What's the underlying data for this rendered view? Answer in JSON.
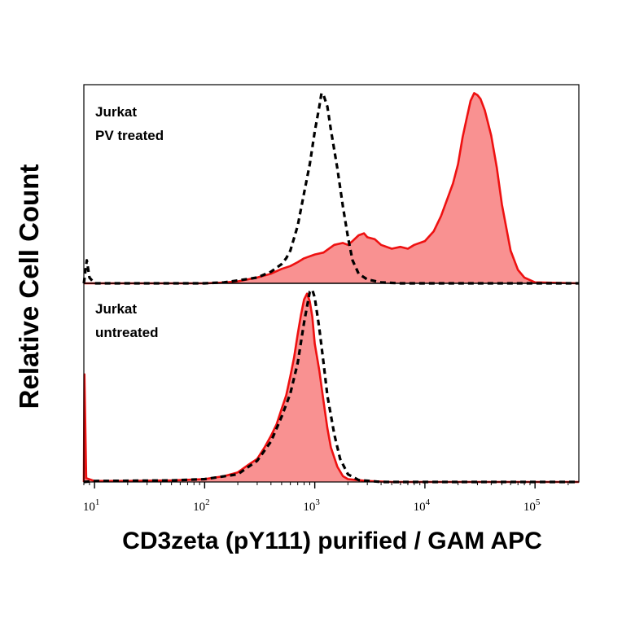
{
  "chart_data": {
    "type": "area",
    "title": "",
    "xlabel": "CD3zeta (pY111) purified / GAM APC",
    "ylabel": "Relative Cell Count",
    "x_scale": "log",
    "xlim": [
      8,
      250000
    ],
    "ylim": [
      0,
      100
    ],
    "x_ticks": [
      {
        "value": 10,
        "base": "10",
        "exp": "1"
      },
      {
        "value": 100,
        "base": "10",
        "exp": "2"
      },
      {
        "value": 1000,
        "base": "10",
        "exp": "3"
      },
      {
        "value": 10000,
        "base": "10",
        "exp": "4"
      },
      {
        "value": 100000,
        "base": "10",
        "exp": "5"
      }
    ],
    "grid": false,
    "legend": "none",
    "colors": {
      "stained": "#ee1111",
      "stained_fill": "#f99191",
      "control": "#000000"
    },
    "panels": [
      {
        "label_line1": "Jurkat",
        "label_line2": "PV treated",
        "series": [
          {
            "style": "filled-red",
            "points": [
              [
                8,
                0
              ],
              [
                100,
                0
              ],
              [
                150,
                0.4
              ],
              [
                200,
                1
              ],
              [
                300,
                3
              ],
              [
                400,
                5
              ],
              [
                500,
                7.5
              ],
              [
                600,
                9
              ],
              [
                700,
                11
              ],
              [
                800,
                13
              ],
              [
                1000,
                15
              ],
              [
                1200,
                16
              ],
              [
                1500,
                20
              ],
              [
                1800,
                21
              ],
              [
                2000,
                20
              ],
              [
                2200,
                22
              ],
              [
                2500,
                25
              ],
              [
                2800,
                26
              ],
              [
                3000,
                24
              ],
              [
                3500,
                23
              ],
              [
                4000,
                20
              ],
              [
                5000,
                18
              ],
              [
                6000,
                19
              ],
              [
                7000,
                18
              ],
              [
                8000,
                20
              ],
              [
                10000,
                22
              ],
              [
                12000,
                27
              ],
              [
                14000,
                35
              ],
              [
                16000,
                44
              ],
              [
                18000,
                52
              ],
              [
                20000,
                62
              ],
              [
                22000,
                76
              ],
              [
                24000,
                86
              ],
              [
                26000,
                95
              ],
              [
                28000,
                99
              ],
              [
                30000,
                98
              ],
              [
                32000,
                96
              ],
              [
                35000,
                90
              ],
              [
                40000,
                77
              ],
              [
                45000,
                60
              ],
              [
                50000,
                41
              ],
              [
                60000,
                17
              ],
              [
                70000,
                7
              ],
              [
                80000,
                3
              ],
              [
                100000,
                0.5
              ],
              [
                250000,
                0
              ]
            ]
          },
          {
            "style": "dashed-black",
            "points": [
              [
                8,
                0
              ],
              [
                8.5,
                12
              ],
              [
                9,
                3
              ],
              [
                10,
                0
              ],
              [
                100,
                0
              ],
              [
                150,
                0.5
              ],
              [
                200,
                1.5
              ],
              [
                300,
                3
              ],
              [
                400,
                6
              ],
              [
                500,
                10
              ],
              [
                550,
                13
              ],
              [
                600,
                17
              ],
              [
                700,
                30
              ],
              [
                800,
                47
              ],
              [
                900,
                62
              ],
              [
                1000,
                79
              ],
              [
                1100,
                92
              ],
              [
                1150,
                99
              ],
              [
                1200,
                98
              ],
              [
                1300,
                92
              ],
              [
                1400,
                80
              ],
              [
                1600,
                60
              ],
              [
                1800,
                40
              ],
              [
                2000,
                24
              ],
              [
                2200,
                12
              ],
              [
                2500,
                5
              ],
              [
                3000,
                2
              ],
              [
                4000,
                0.5
              ],
              [
                6000,
                0
              ],
              [
                250000,
                0
              ]
            ]
          }
        ]
      },
      {
        "label_line1": "Jurkat",
        "label_line2": "untreated",
        "series": [
          {
            "style": "filled-red",
            "points": [
              [
                8,
                0
              ],
              [
                8.1,
                56
              ],
              [
                8.4,
                2
              ],
              [
                10,
                0.5
              ],
              [
                20,
                0.5
              ],
              [
                50,
                0.8
              ],
              [
                100,
                1.5
              ],
              [
                150,
                3
              ],
              [
                200,
                5
              ],
              [
                250,
                9
              ],
              [
                300,
                12
              ],
              [
                350,
                18
              ],
              [
                400,
                24
              ],
              [
                450,
                30
              ],
              [
                500,
                38
              ],
              [
                550,
                45
              ],
              [
                600,
                55
              ],
              [
                650,
                65
              ],
              [
                700,
                77
              ],
              [
                750,
                87
              ],
              [
                800,
                95
              ],
              [
                850,
                98
              ],
              [
                900,
                94
              ],
              [
                950,
                86
              ],
              [
                1000,
                72
              ],
              [
                1100,
                58
              ],
              [
                1200,
                42
              ],
              [
                1300,
                28
              ],
              [
                1400,
                18
              ],
              [
                1600,
                8
              ],
              [
                1800,
                3
              ],
              [
                2000,
                1.5
              ],
              [
                3000,
                0.5
              ],
              [
                5000,
                0
              ],
              [
                250000,
                0
              ]
            ]
          },
          {
            "style": "dashed-black",
            "points": [
              [
                8,
                0
              ],
              [
                10,
                0.5
              ],
              [
                50,
                0.8
              ],
              [
                100,
                1.5
              ],
              [
                200,
                4
              ],
              [
                300,
                11
              ],
              [
                400,
                21
              ],
              [
                500,
                34
              ],
              [
                600,
                46
              ],
              [
                700,
                62
              ],
              [
                800,
                83
              ],
              [
                900,
                99
              ],
              [
                950,
                100
              ],
              [
                1000,
                96
              ],
              [
                1100,
                80
              ],
              [
                1200,
                62
              ],
              [
                1300,
                45
              ],
              [
                1500,
                25
              ],
              [
                1700,
                12
              ],
              [
                2000,
                4
              ],
              [
                2500,
                1
              ],
              [
                4000,
                0
              ],
              [
                250000,
                0
              ]
            ]
          }
        ]
      }
    ]
  }
}
